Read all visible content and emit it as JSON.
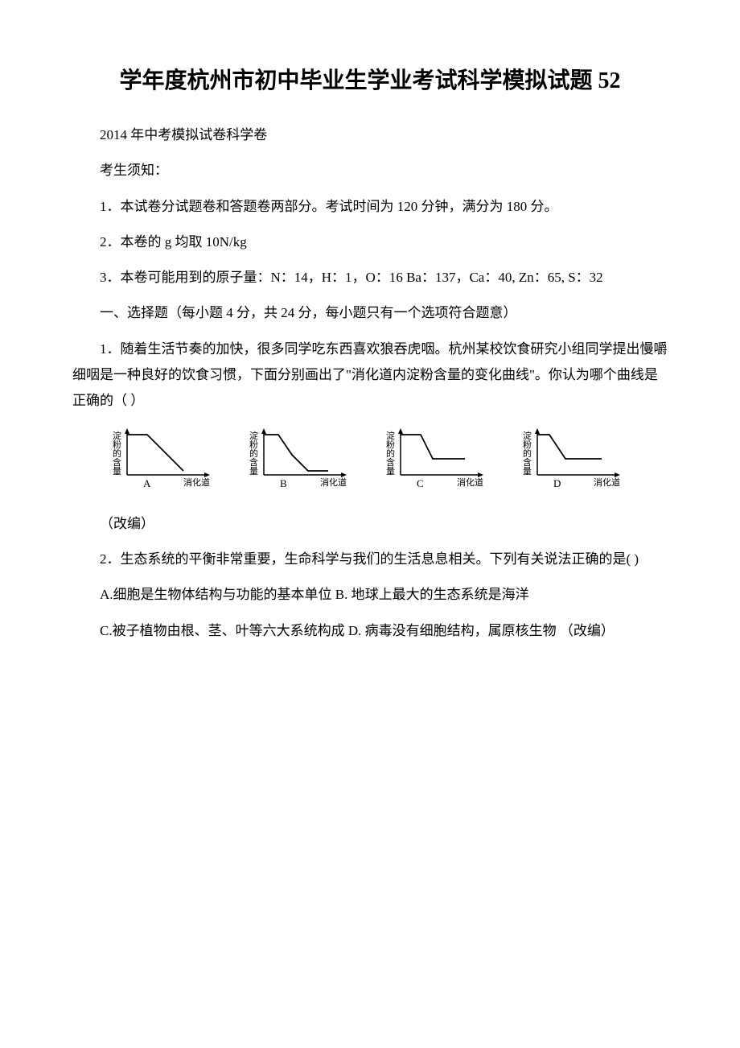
{
  "title": "学年度杭州市初中毕业生学业考试科学模拟试题 52",
  "subtitle": "2014 年中考模拟试卷科学卷",
  "instructions_header": "考生须知：",
  "instruction_1": "1．本试卷分试题卷和答题卷两部分。考试时间为 120 分钟，满分为 180 分。",
  "instruction_2": "2．本卷的 g 均取 10N/kg",
  "instruction_3": "3．本卷可能用到的原子量：N：14，H：1，O：16 Ba：137，Ca：40, Zn：65, S：32",
  "section_1": "一、选择题（每小题 4 分，共 24 分，每小题只有一个选项符合题意）",
  "question_1": "1．随着生活节奏的加快，很多同学吃东西喜欢狼吞虎咽。杭州某校饮食研究小组同学提出慢嚼细咽是一种良好的饮食习惯，下面分别画出了\"消化道内淀粉含量的变化曲线\"。你认为哪个曲线是正确的（ ）",
  "adapted_note": "（改编）",
  "question_2": "2．生态系统的平衡非常重要，生命科学与我们的生活息息相关。下列有关说法正确的是(  )",
  "q2_options_ab": "A.细胞是生物体结构与功能的基本单位 B. 地球上最大的生态系统是海洋",
  "q2_options_cd": "C.被子植物由根、茎、叶等六大系统构成 D. 病毒没有细胞结构，属原核生物 （改编）",
  "charts": {
    "y_label": "淀粉的含量",
    "x_label": "消化道",
    "items": [
      {
        "label": "A",
        "points": [
          [
            0,
            10
          ],
          [
            25,
            10
          ],
          [
            70,
            55
          ]
        ],
        "axis_color": "#000000",
        "line_color": "#000000",
        "text_color": "#000000",
        "font_size": 11
      },
      {
        "label": "B",
        "points": [
          [
            0,
            10
          ],
          [
            18,
            10
          ],
          [
            35,
            35
          ],
          [
            55,
            55
          ],
          [
            80,
            55
          ]
        ],
        "axis_color": "#000000",
        "line_color": "#000000",
        "text_color": "#000000",
        "font_size": 11
      },
      {
        "label": "C",
        "points": [
          [
            0,
            10
          ],
          [
            25,
            10
          ],
          [
            40,
            40
          ],
          [
            80,
            40
          ]
        ],
        "axis_color": "#000000",
        "line_color": "#000000",
        "text_color": "#000000",
        "font_size": 11
      },
      {
        "label": "D",
        "points": [
          [
            0,
            10
          ],
          [
            15,
            10
          ],
          [
            35,
            40
          ],
          [
            80,
            40
          ]
        ],
        "axis_color": "#000000",
        "line_color": "#000000",
        "text_color": "#000000",
        "font_size": 11
      }
    ]
  }
}
